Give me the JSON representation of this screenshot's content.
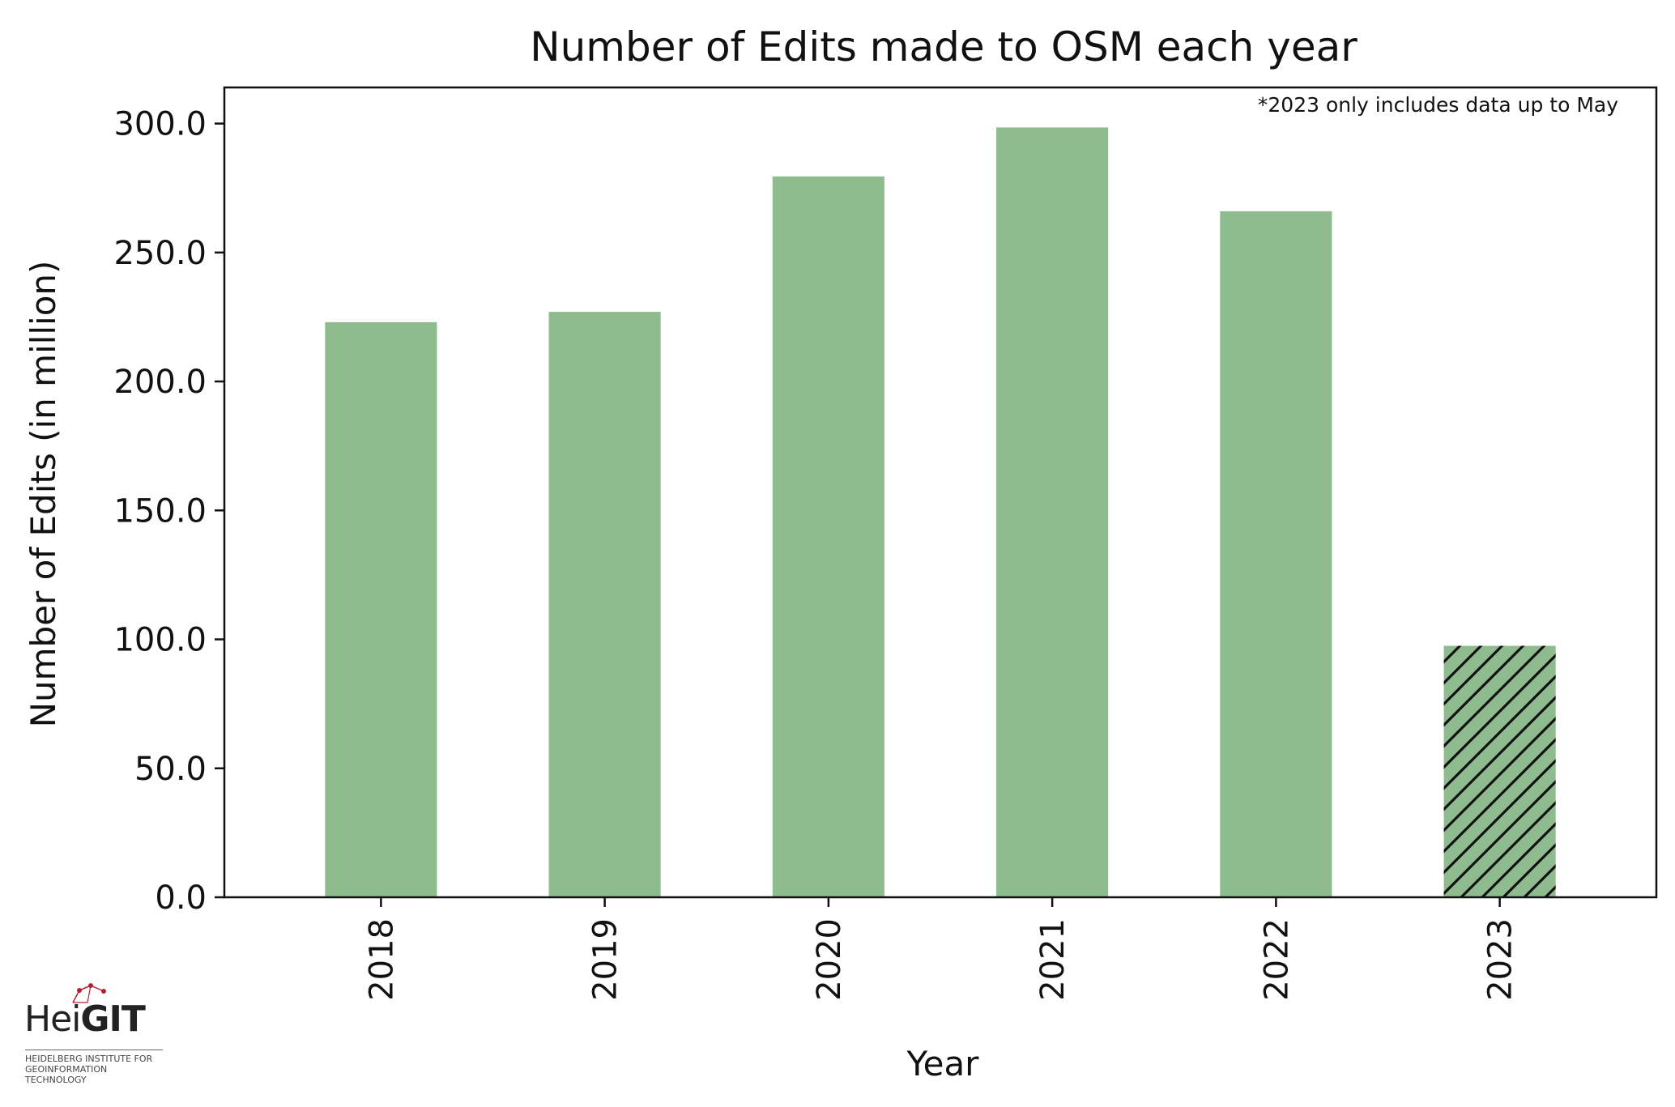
{
  "chart_data": {
    "type": "bar",
    "title": "Number of Edits made to OSM each year",
    "xlabel": "Year",
    "ylabel": "Number of Edits (in million)",
    "annotation": "*2023 only includes data up to May",
    "categories": [
      "2018",
      "2019",
      "2020",
      "2021",
      "2022",
      "2023"
    ],
    "values": [
      223.0,
      227.0,
      279.5,
      298.5,
      266.0,
      97.5
    ],
    "hatched": [
      false,
      false,
      false,
      false,
      false,
      true
    ],
    "ylim": [
      0,
      314
    ],
    "yticks": [
      0,
      50,
      100,
      150,
      200,
      250,
      300
    ],
    "ytick_labels": [
      "0.0",
      "50.0",
      "100.0",
      "150.0",
      "200.0",
      "250.0",
      "300.0"
    ],
    "bar_color": "#8fbc8f",
    "grid": false
  },
  "logo": {
    "word_light": "Hei",
    "word_bold": "GIT",
    "subtitle": "HEIDELBERG INSTITUTE FOR GEOINFORMATION TECHNOLOGY",
    "accent_color": "#b22234"
  }
}
